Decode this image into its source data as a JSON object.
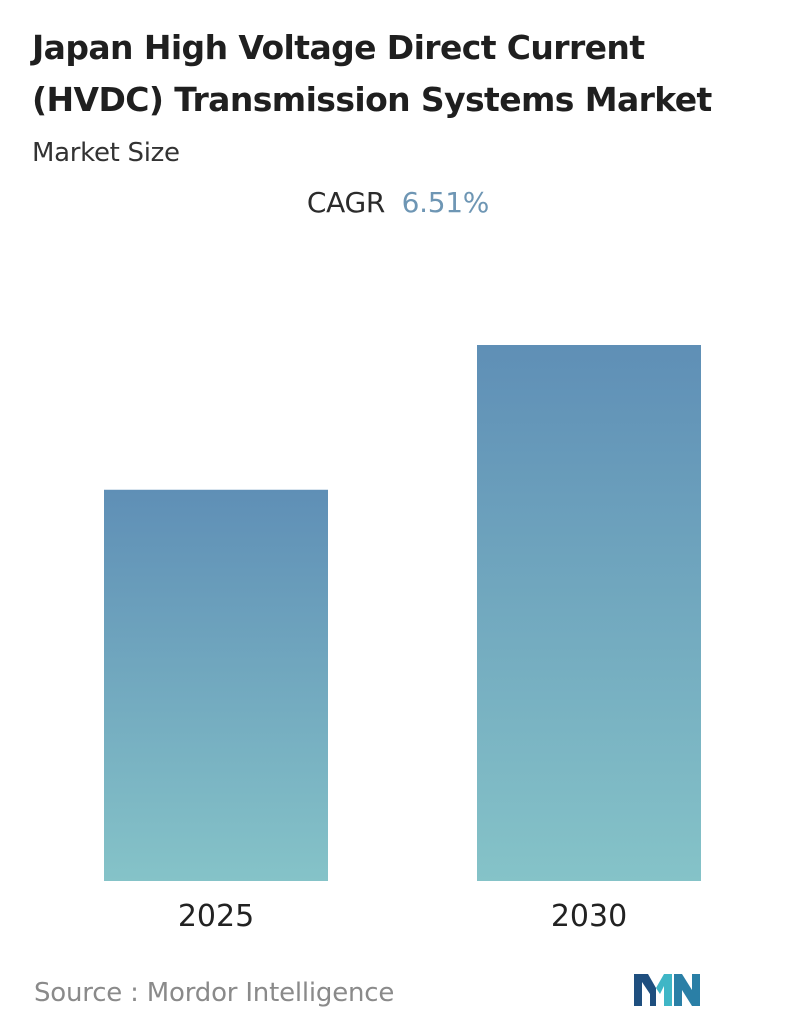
{
  "header": {
    "title": "Japan High Voltage Direct Current (HVDC) Transmission Systems Market",
    "subtitle": "Market Size"
  },
  "cagr": {
    "label": "CAGR",
    "value": "6.51%"
  },
  "chart_data": {
    "type": "bar",
    "title": "Japan High Voltage Direct Current (HVDC) Transmission Systems Market",
    "subtitle": "Market Size",
    "categories": [
      "2025",
      "2030"
    ],
    "values": [
      1.0,
      1.37
    ],
    "grid": false,
    "legend": "none",
    "colors": {
      "bar_top": "#5f8fb6",
      "bar_bottom": "#85c3c8"
    }
  },
  "footer": {
    "source": "Source :  Mordor Intelligence",
    "logo_icon": "mordor-intelligence-logo-icon",
    "logo_colors": [
      "#1f4f7f",
      "#3fb6c6"
    ]
  }
}
